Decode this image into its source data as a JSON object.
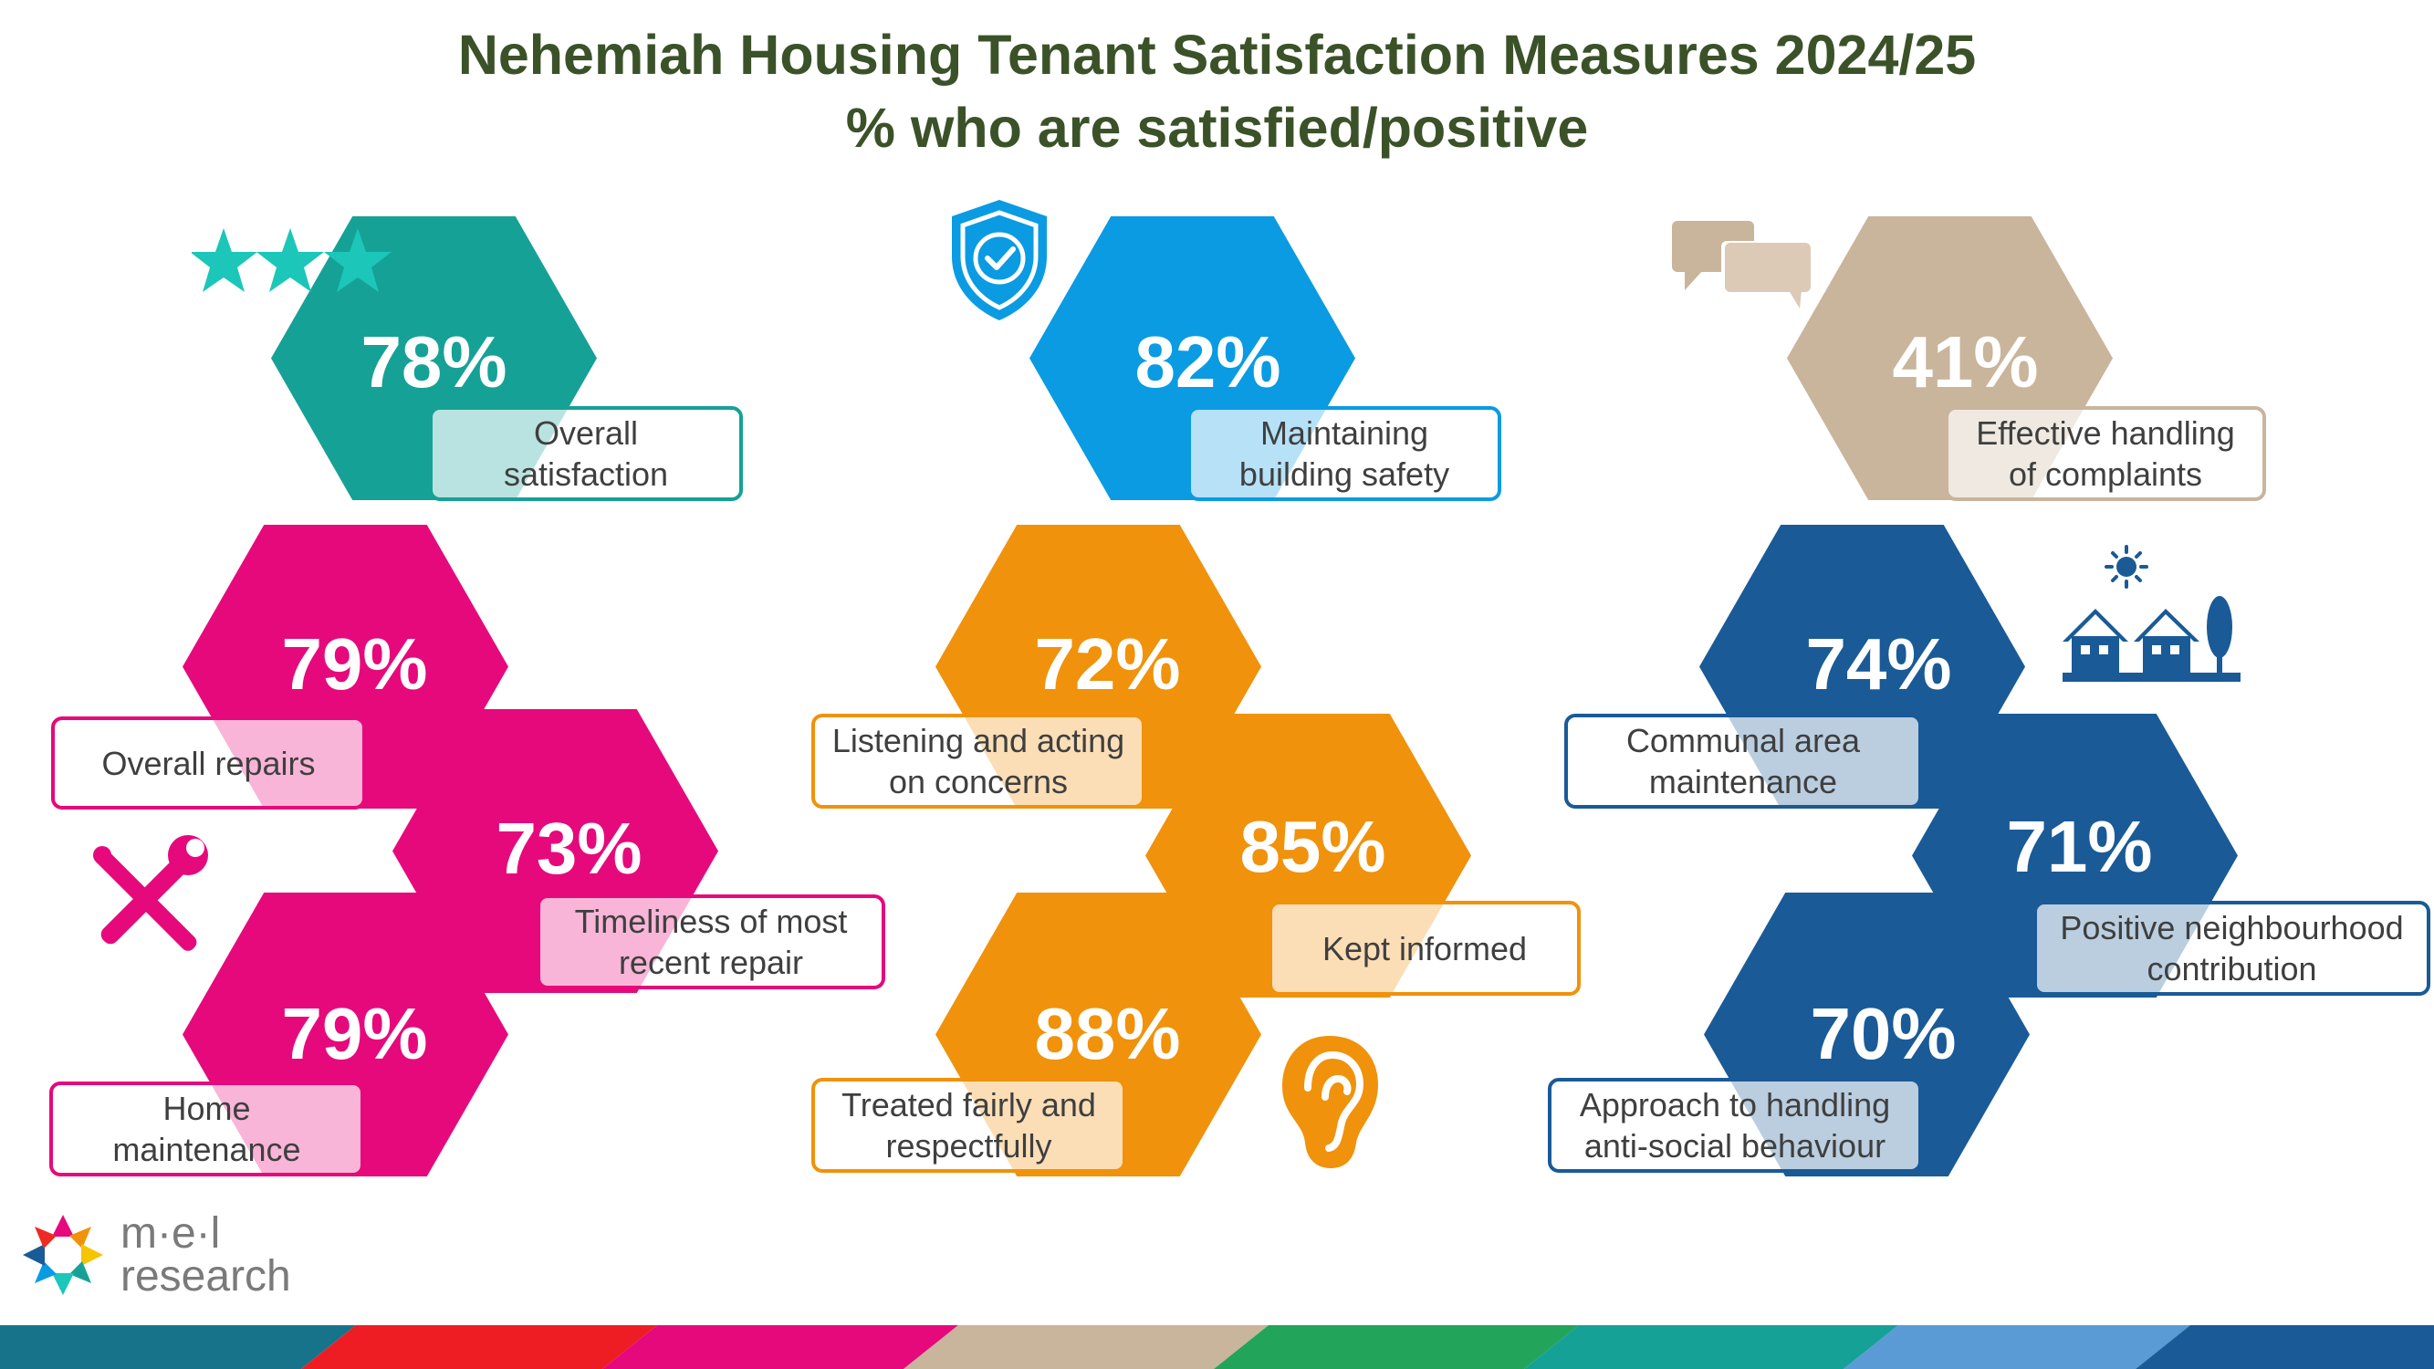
{
  "title": {
    "line1": "Nehemiah Housing Tenant Satisfaction Measures 2024/25",
    "line2": "% who are satisfied/positive"
  },
  "colors": {
    "title": "#3b5229",
    "teal": "#16a196",
    "pink": "#e6097c",
    "blue": "#0a9be3",
    "orange": "#f0920b",
    "tan": "#c9b49c",
    "navy": "#1a5a97"
  },
  "measures": [
    {
      "value": "78%",
      "label": "Overall satisfaction",
      "line1": "Overall",
      "line2": "satisfaction",
      "color": "#16a196",
      "icon": "three-stars-icon"
    },
    {
      "value": "79%",
      "label": "Overall repairs",
      "line1": "Overall repairs",
      "line2": "",
      "color": "#e6097c",
      "icon": ""
    },
    {
      "value": "73%",
      "label": "Timeliness of most recent repair",
      "line1": "Timeliness of most",
      "line2": "recent repair",
      "color": "#e6097c",
      "icon": "tools-icon"
    },
    {
      "value": "79%",
      "label": "Home maintenance",
      "line1": "Home",
      "line2": "maintenance",
      "color": "#e6097c",
      "icon": ""
    },
    {
      "value": "82%",
      "label": "Maintaining building safety",
      "line1": "Maintaining",
      "line2": "building safety",
      "color": "#0a9be3",
      "icon": "shield-check-icon"
    },
    {
      "value": "72%",
      "label": "Listening and acting on concerns",
      "line1": "Listening and acting",
      "line2": "on concerns",
      "color": "#f0920b",
      "icon": ""
    },
    {
      "value": "85%",
      "label": "Kept informed",
      "line1": "Kept informed",
      "line2": "",
      "color": "#f0920b",
      "icon": ""
    },
    {
      "value": "88%",
      "label": "Treated fairly and respectfully",
      "line1": "Treated fairly and",
      "line2": "respectfully",
      "color": "#f0920b",
      "icon": "ear-icon"
    },
    {
      "value": "41%",
      "label": "Effective handling of complaints",
      "line1": "Effective handling",
      "line2": "of complaints",
      "color": "#c9b49c",
      "icon": "speech-bubbles-icon"
    },
    {
      "value": "74%",
      "label": "Communal area maintenance",
      "line1": "Communal area",
      "line2": "maintenance",
      "color": "#1a5a97",
      "icon": "houses-icon"
    },
    {
      "value": "71%",
      "label": "Positive neighbourhood contribution",
      "line1": "Positive neighbourhood",
      "line2": "contribution",
      "color": "#1a5a97",
      "icon": ""
    },
    {
      "value": "70%",
      "label": "Approach to handling anti-social behaviour",
      "line1": "Approach to handling",
      "line2": "anti-social behaviour",
      "color": "#1a5a97",
      "icon": ""
    }
  ],
  "logo": {
    "line1": "m·e·l",
    "line2": "research"
  }
}
